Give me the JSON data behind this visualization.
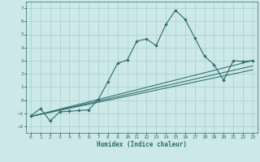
{
  "xlabel": "Humidex (Indice chaleur)",
  "bg_color": "#cce8e8",
  "line_color": "#2d6b6b",
  "grid_color": "#aacece",
  "xlim": [
    -0.5,
    23.5
  ],
  "ylim": [
    -2.5,
    7.5
  ],
  "xticks": [
    0,
    1,
    2,
    3,
    4,
    5,
    6,
    7,
    8,
    9,
    10,
    11,
    12,
    13,
    14,
    15,
    16,
    17,
    18,
    19,
    20,
    21,
    22,
    23
  ],
  "yticks": [
    -2,
    -1,
    0,
    1,
    2,
    3,
    4,
    5,
    6,
    7
  ],
  "main_x": [
    0,
    1,
    2,
    3,
    4,
    5,
    6,
    7,
    8,
    9,
    10,
    11,
    12,
    13,
    14,
    15,
    16,
    17,
    18,
    19,
    20,
    21,
    22,
    23
  ],
  "main_y": [
    -1.2,
    -0.65,
    -1.6,
    -0.9,
    -0.85,
    -0.8,
    -0.75,
    0.05,
    1.4,
    2.8,
    3.05,
    4.5,
    4.65,
    4.15,
    5.75,
    6.85,
    6.15,
    4.75,
    3.35,
    2.7,
    1.5,
    3.0,
    2.95,
    3.0
  ],
  "line1_x": [
    0,
    23
  ],
  "line1_y": [
    -1.25,
    3.0
  ],
  "line2_x": [
    0,
    23
  ],
  "line2_y": [
    -1.25,
    2.3
  ],
  "line3_x": [
    0,
    23
  ],
  "line3_y": [
    -1.25,
    2.6
  ]
}
